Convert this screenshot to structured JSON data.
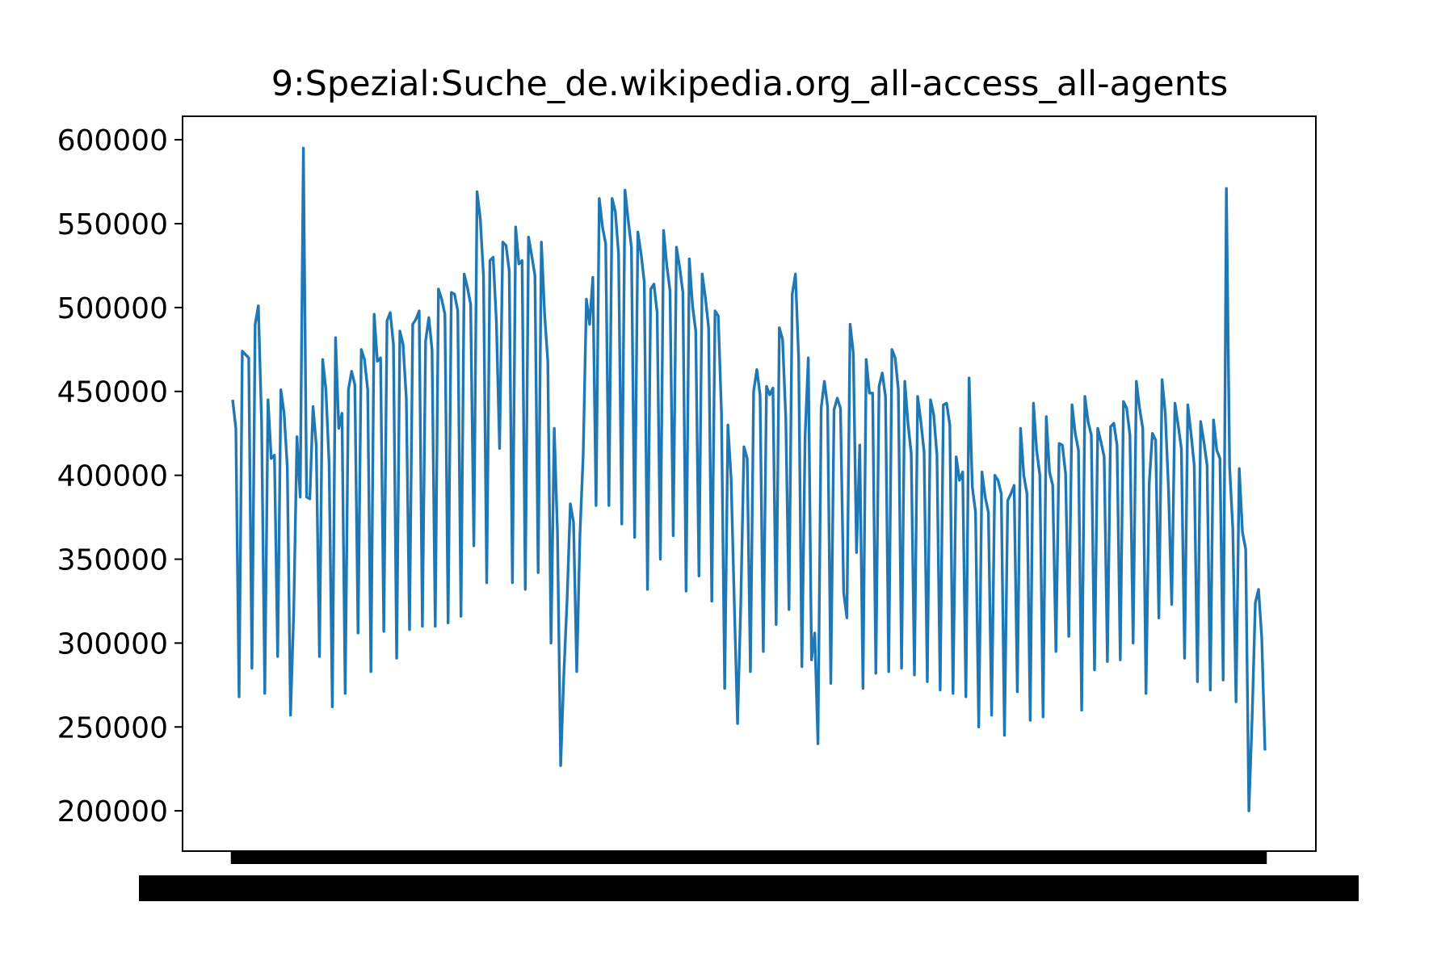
{
  "chart_data": {
    "type": "line",
    "title": "9:Spezial:Suche_de.wikipedia.org_all-access_all-agents",
    "xlabel": "",
    "ylabel": "",
    "ylim": [
      176000,
      614000
    ],
    "yticks": [
      200000,
      250000,
      300000,
      350000,
      400000,
      450000,
      500000,
      550000,
      600000
    ],
    "ytick_labels": [
      "200000",
      "250000",
      "300000",
      "350000",
      "400000",
      "450000",
      "500000",
      "550000",
      "600000"
    ],
    "grid": false,
    "legend": "none",
    "series": [
      {
        "color": "#1f77b4",
        "values": [
          445000,
          428000,
          268000,
          474000,
          472000,
          470000,
          285000,
          490000,
          501000,
          432000,
          270000,
          445000,
          410000,
          412000,
          292000,
          451000,
          437000,
          405000,
          257000,
          319000,
          423000,
          387000,
          595000,
          387000,
          386000,
          441000,
          418000,
          292000,
          469000,
          451000,
          407000,
          262000,
          482000,
          428000,
          437000,
          270000,
          451000,
          462000,
          454000,
          306000,
          475000,
          469000,
          451000,
          283000,
          496000,
          468000,
          470000,
          307000,
          492000,
          497000,
          478000,
          291000,
          486000,
          478000,
          446000,
          308000,
          490000,
          493000,
          498000,
          310000,
          480000,
          494000,
          475000,
          310000,
          511000,
          505000,
          496000,
          312000,
          509000,
          508000,
          498000,
          316000,
          520000,
          512000,
          502000,
          358000,
          569000,
          553000,
          519000,
          336000,
          528000,
          530000,
          492000,
          416000,
          539000,
          537000,
          522000,
          336000,
          548000,
          526000,
          528000,
          332000,
          542000,
          531000,
          519000,
          342000,
          539000,
          496000,
          468000,
          300000,
          428000,
          366000,
          227000,
          282000,
          326000,
          383000,
          372000,
          283000,
          365000,
          412000,
          505000,
          490000,
          518000,
          382000,
          565000,
          548000,
          538000,
          382000,
          565000,
          557000,
          532000,
          371000,
          570000,
          552000,
          536000,
          363000,
          545000,
          532000,
          515000,
          332000,
          511000,
          514000,
          497000,
          350000,
          546000,
          525000,
          510000,
          364000,
          536000,
          524000,
          509000,
          331000,
          529000,
          501000,
          486000,
          340000,
          520000,
          506000,
          488000,
          325000,
          498000,
          495000,
          437000,
          273000,
          430000,
          398000,
          323000,
          252000,
          323000,
          417000,
          410000,
          283000,
          450000,
          463000,
          448000,
          295000,
          453000,
          448000,
          452000,
          311000,
          488000,
          481000,
          434000,
          320000,
          508000,
          520000,
          470000,
          286000,
          423000,
          470000,
          290000,
          306000,
          240000,
          440000,
          456000,
          441000,
          276000,
          439000,
          446000,
          440000,
          330000,
          315000,
          490000,
          473000,
          354000,
          418000,
          273000,
          469000,
          449000,
          449000,
          282000,
          453000,
          461000,
          447000,
          283000,
          475000,
          470000,
          451000,
          285000,
          456000,
          431000,
          413000,
          281000,
          447000,
          432000,
          414000,
          277000,
          445000,
          436000,
          412000,
          272000,
          442000,
          443000,
          430000,
          270000,
          411000,
          397000,
          402000,
          268000,
          458000,
          393000,
          378000,
          250000,
          402000,
          387000,
          378000,
          257000,
          400000,
          397000,
          389000,
          245000,
          385000,
          389000,
          394000,
          271000,
          428000,
          400000,
          389000,
          254000,
          443000,
          415000,
          400000,
          256000,
          435000,
          402000,
          394000,
          295000,
          419000,
          418000,
          401000,
          304000,
          442000,
          425000,
          415000,
          260000,
          447000,
          432000,
          424000,
          284000,
          428000,
          420000,
          411000,
          289000,
          429000,
          431000,
          418000,
          290000,
          444000,
          440000,
          424000,
          300000,
          456000,
          440000,
          428000,
          270000,
          395000,
          425000,
          421000,
          315000,
          457000,
          437000,
          392000,
          323000,
          443000,
          430000,
          416000,
          291000,
          442000,
          425000,
          406000,
          277000,
          432000,
          420000,
          406000,
          272000,
          433000,
          415000,
          410000,
          278000,
          571000,
          405000,
          368000,
          265000,
          404000,
          366000,
          356000,
          200000,
          255000,
          324000,
          332000,
          303000,
          236000
        ]
      }
    ]
  }
}
